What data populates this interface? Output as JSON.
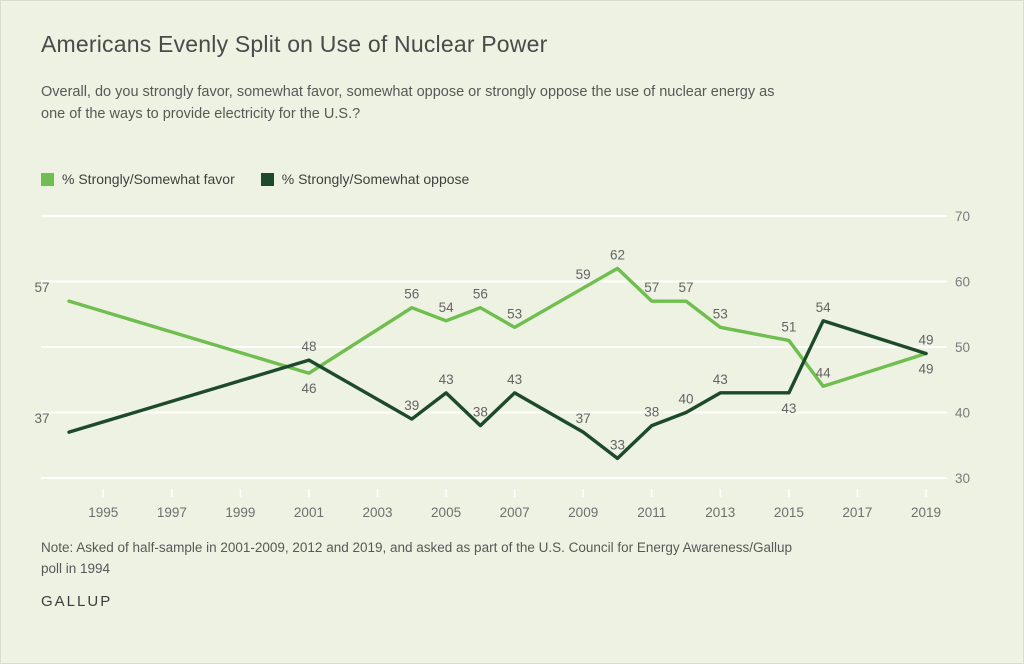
{
  "header": {
    "title": "Americans Evenly Split on Use of Nuclear Power",
    "subtitle": "Overall, do you strongly favor, somewhat favor, somewhat oppose or strongly oppose the use of nuclear energy as one of the ways to provide electricity for the U.S.?"
  },
  "legend": [
    {
      "label": "% Strongly/Somewhat favor",
      "color": "#6fbe4f"
    },
    {
      "label": "% Strongly/Somewhat oppose",
      "color": "#1d4a2a"
    }
  ],
  "chart_data": {
    "type": "line",
    "title": "Americans Evenly Split on Use of Nuclear Power",
    "x": [
      1994,
      2001,
      2004,
      2005,
      2006,
      2007,
      2009,
      2010,
      2011,
      2012,
      2013,
      2015,
      2016,
      2019
    ],
    "series": [
      {
        "name": "% Strongly/Somewhat favor",
        "color": "#6fbe4f",
        "values": [
          57,
          46,
          56,
          54,
          56,
          53,
          59,
          62,
          57,
          57,
          53,
          51,
          44,
          49
        ]
      },
      {
        "name": "% Strongly/Somewhat oppose",
        "color": "#1d4a2a",
        "values": [
          37,
          48,
          39,
          43,
          38,
          43,
          37,
          33,
          38,
          40,
          43,
          43,
          54,
          49
        ]
      }
    ],
    "xticks": [
      1995,
      1997,
      1999,
      2001,
      2003,
      2005,
      2007,
      2009,
      2011,
      2013,
      2015,
      2017,
      2019
    ],
    "yticks": [
      30,
      40,
      50,
      60,
      70
    ],
    "xlim": [
      1994,
      2019
    ],
    "ylim": [
      30,
      70
    ],
    "grid": "horizontal",
    "grid_color": "#ffffff",
    "yaxis_side": "right",
    "legend_position": "top-left"
  },
  "footer": {
    "note": "Note: Asked of half-sample in 2001-2009, 2012 and 2019, and asked as part of the U.S. Council for Energy Awareness/Gallup poll in 1994",
    "brand": "GALLUP"
  }
}
